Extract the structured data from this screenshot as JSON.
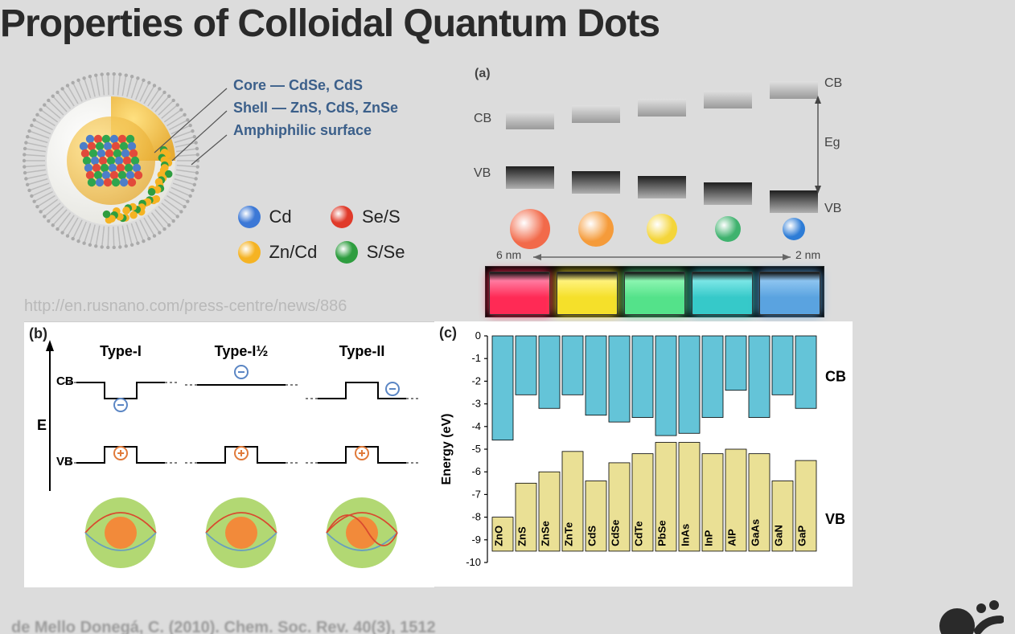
{
  "title": "Properties of Colloidal Quantum Dots",
  "url_watermark": "http://en.rusnano.com/press-centre/news/886",
  "citation": "de Mello Donegá, C. (2010). Chem. Soc. Rev. 40(3), 1512",
  "qd_structure": {
    "labels": [
      "Core — CdSe, CdS",
      "Shell — ZnS, CdS, ZnSe",
      "Amphiphilic surface"
    ],
    "label_color": "#3b5f8a",
    "label_fontsize": 18,
    "pointer_color": "#555",
    "shell_color": "#f6c24a",
    "core_colors": {
      "blue": "#4d7ec9",
      "red": "#e24a3b",
      "green": "#2fa54d"
    },
    "spike_color": "#b8b8b8",
    "legend": [
      {
        "color": "#3c78d6",
        "label": "Cd"
      },
      {
        "color": "#e03a2a",
        "label": "Se/S"
      },
      {
        "color": "#f5b323",
        "label": "Zn/Cd"
      },
      {
        "color": "#2e9d3f",
        "label": "S/Se"
      }
    ]
  },
  "panel_a": {
    "label": "(a)",
    "cb_label": "CB",
    "vb_label": "VB",
    "eg_label": "Eg",
    "size_left_label": "6 nm",
    "size_right_label": "2 nm",
    "dots": [
      {
        "size": 50,
        "color": "#f26a4a",
        "cb_y": 58,
        "vb_y": 126,
        "gap": 68
      },
      {
        "size": 44,
        "color": "#f59b3a",
        "cb_y": 50,
        "vb_y": 132,
        "gap": 82
      },
      {
        "size": 38,
        "color": "#f4d53a",
        "cb_y": 42,
        "vb_y": 138,
        "gap": 96
      },
      {
        "size": 32,
        "color": "#3fb26e",
        "cb_y": 32,
        "vb_y": 146,
        "gap": 114
      },
      {
        "size": 28,
        "color": "#2d7cd6",
        "cb_y": 20,
        "vb_y": 156,
        "gap": 136
      }
    ],
    "band_color_top": "#b8b8b8",
    "band_color_bot": "#3a3a3a",
    "cuvette_colors": [
      "#ff2a55",
      "#f5e02a",
      "#54e28a",
      "#36c9c9",
      "#5aa3e0"
    ],
    "cuvette_glow": [
      "#ff7aa0",
      "#fff27a",
      "#8af5b0",
      "#7ae6e6",
      "#8cc4f0"
    ],
    "cuvette_bg": "#000"
  },
  "panel_b": {
    "label": "(b)",
    "axis_label": "E",
    "cb_label": "CB",
    "vb_label": "VB",
    "types": [
      "Type-I",
      "Type-I½",
      "Type-II"
    ],
    "electron_color": "#5b86c4",
    "hole_color": "#e07a3a",
    "shell_sphere_color": "#a4d15a",
    "core_sphere_color": "#f28a3a",
    "wave_e_color": "#d94a2f",
    "wave_h_color": "#6a9fbd"
  },
  "panel_c": {
    "label": "(c)",
    "ylabel": "Energy (eV)",
    "cb_label": "CB",
    "vb_label": "VB",
    "ylim": [
      -10,
      0
    ],
    "ytick_step": 1,
    "cb_color": "#5cc1d6",
    "vb_color": "#e9de8f",
    "axis_color": "#000",
    "bar_border": "#000",
    "materials": [
      "ZnO",
      "ZnS",
      "ZnSe",
      "ZnTe",
      "CdS",
      "CdSe",
      "CdTe",
      "PbSe",
      "InAs",
      "InP",
      "AlP",
      "GaAs",
      "GaN",
      "GaP"
    ],
    "cb_bottom": [
      -4.6,
      -2.6,
      -3.2,
      -2.6,
      -3.5,
      -3.8,
      -3.6,
      -4.4,
      -4.3,
      -3.6,
      -2.4,
      -3.6,
      -2.6,
      -3.2
    ],
    "vb_top": [
      -8.0,
      -6.5,
      -6.0,
      -5.1,
      -6.4,
      -5.6,
      -5.2,
      -4.7,
      -4.7,
      -5.2,
      -5.0,
      -5.2,
      -6.4,
      -5.5
    ],
    "vb_bottom": [
      -9.5,
      -9.5,
      -9.5,
      -9.5,
      -9.5,
      -9.5,
      -9.5,
      -9.5,
      -9.5,
      -9.5,
      -9.5,
      -9.5,
      -9.5,
      -9.5
    ]
  }
}
